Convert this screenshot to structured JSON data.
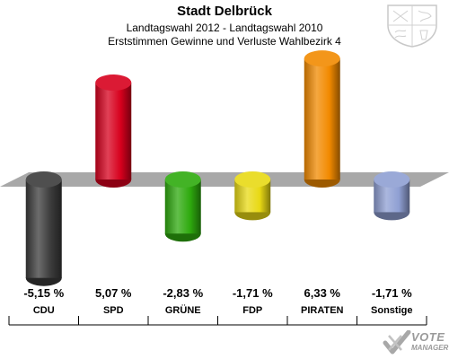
{
  "header": {
    "title": "Stadt Delbrück",
    "subtitle1": "Landtagswahl 2012 - Landtagswahl 2010",
    "subtitle2": "Erststimmen Gewinne und Verluste Wahlbezirk 4"
  },
  "chart_data": {
    "type": "bar",
    "title": "Stadt Delbrück",
    "subtitle": "Landtagswahl 2012 - Landtagswahl 2010 / Erststimmen Gewinne und Verluste Wahlbezirk 4",
    "categories": [
      "CDU",
      "SPD",
      "GRÜNE",
      "FDP",
      "PIRATEN",
      "Sonstige"
    ],
    "values": [
      -5.15,
      5.07,
      -2.83,
      -1.71,
      6.33,
      -1.71
    ],
    "value_labels": [
      "-5,15 %",
      "5,07 %",
      "-2,83 %",
      "-1,71 %",
      "6,33 %",
      "-1,71 %"
    ],
    "colors": [
      "#3b3b3b",
      "#d7001d",
      "#2eaa0e",
      "#e8d914",
      "#f28a00",
      "#8f9fd3"
    ],
    "xlabel": "",
    "ylabel": "",
    "grid": false,
    "legend": "none",
    "ylim": [
      -6.5,
      6.5
    ]
  },
  "logo": {
    "line1": "VOTE",
    "line2": "MANAGER"
  }
}
